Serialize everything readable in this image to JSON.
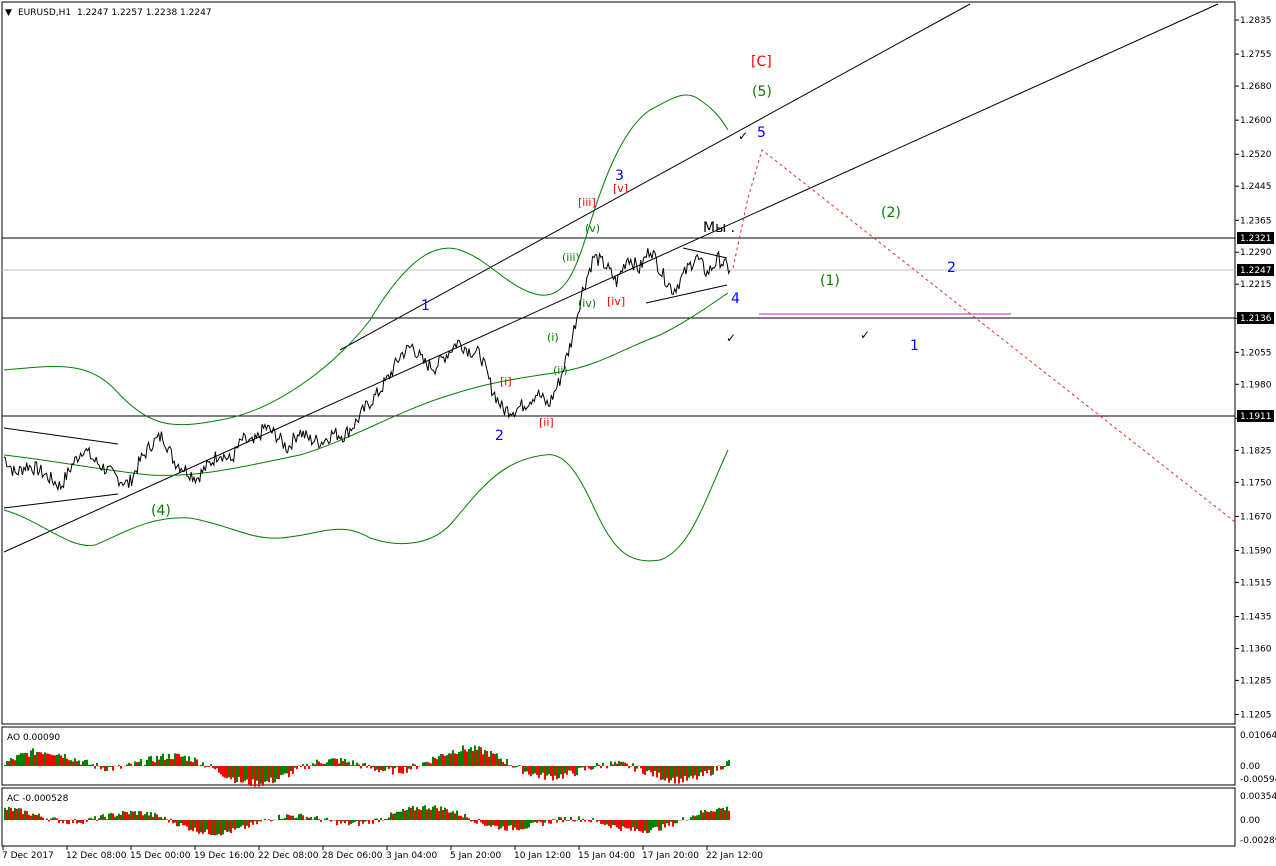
{
  "header": {
    "menu_glyph": "▼",
    "symbol": "EURUSD,H1",
    "ohlc": "1.2247 1.2257 1.2238 1.2247"
  },
  "price_axis": {
    "ticks": [
      "1.2835",
      "1.2755",
      "1.2680",
      "1.2600",
      "1.2520",
      "1.2445",
      "1.2365",
      "1.2290",
      "1.2215",
      "1.2135",
      "1.2055",
      "1.1980",
      "1.1900",
      "1.1825",
      "1.1750",
      "1.1670",
      "1.1590",
      "1.1515",
      "1.1435",
      "1.1360",
      "1.1285",
      "1.1205"
    ],
    "level_tags": [
      "1.2321",
      "1.2247",
      "1.2136",
      "1.1911"
    ]
  },
  "time_axis": {
    "labels": [
      "7 Dec 2017",
      "12 Dec 08:00",
      "15 Dec 00:00",
      "19 Dec 16:00",
      "22 Dec 08:00",
      "28 Dec 06:00",
      "3 Jan 04:00",
      "5 Jan 20:00",
      "10 Jan 12:00",
      "15 Jan 04:00",
      "17 Jan 20:00",
      "22 Jan 12:00"
    ]
  },
  "indicators": {
    "ao": {
      "label": "AO 0.00090",
      "ticks": [
        "0.01064",
        "0.00",
        "-0.00594"
      ]
    },
    "ac": {
      "label": "AC -0.000528",
      "ticks": [
        "0.00354",
        "0.00",
        "-0.00289"
      ]
    }
  },
  "annotations": {
    "mi": "Мы .",
    "C": "[C]",
    "w5g": "(5)",
    "w5b": "5",
    "w3b": "3",
    "wv": "[v]",
    "wiii_r": "[iii]",
    "wv_g": "(v)",
    "wiii_g": "(iii)",
    "wiv_g": "(iv)",
    "wiv_r": "[iv]",
    "wi_g": "(i)",
    "wii_g": "(ii)",
    "wi_r": "[i]",
    "wii_r": "[ii]",
    "w4b": "4",
    "w2b": "2",
    "w1b": "1",
    "w4g": "(4)",
    "f2g": "(2)",
    "f1g": "(1)",
    "f2b": "2",
    "f1b": "1"
  },
  "colors": {
    "price": "#000000",
    "bands": "#008000",
    "projection": "#e03030",
    "ao_up": "#008000",
    "ao_down": "#ff0000",
    "wave_blue": "#0000ff",
    "wave_green": "#008000",
    "wave_red": "#ff0000",
    "support_line": "#c020c0"
  },
  "chart_data": {
    "type": "line",
    "title": "EURUSD,H1",
    "ylim": [
      1.1185,
      1.2875
    ],
    "horizontal_levels": [
      1.2321,
      1.2136,
      1.1911
    ],
    "current_price": 1.2247,
    "series": [
      {
        "name": "EURUSD,H1",
        "values": [
          1.181,
          1.177,
          1.179,
          1.178,
          1.176,
          1.174,
          1.179,
          1.183,
          1.18,
          1.178,
          1.176,
          1.1745,
          1.18,
          1.184,
          1.186,
          1.18,
          1.178,
          1.176,
          1.179,
          1.182,
          1.18,
          1.185,
          1.184,
          1.188,
          1.186,
          1.183,
          1.187,
          1.185,
          1.1845,
          1.1865,
          1.186,
          1.189,
          1.193,
          1.196,
          1.2,
          1.205,
          1.207,
          1.203,
          1.202,
          1.205,
          1.208,
          1.206,
          1.205,
          1.197,
          1.192,
          1.192,
          1.1935,
          1.196,
          1.193,
          1.199,
          1.208,
          1.22,
          1.228,
          1.226,
          1.222,
          1.228,
          1.225,
          1.23,
          1.224,
          1.22,
          1.224,
          1.228,
          1.224,
          1.2275,
          1.2247
        ]
      }
    ]
  }
}
